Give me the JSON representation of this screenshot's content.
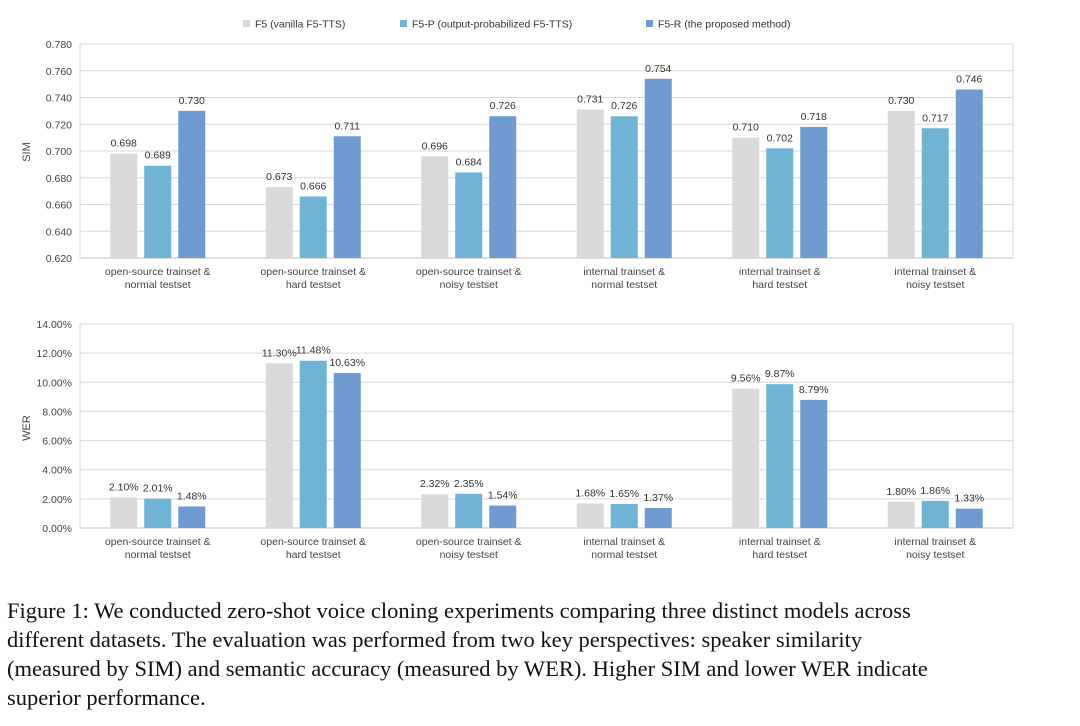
{
  "colors": {
    "F5": "#d9d9d9",
    "F5-P": "#6fb4d4",
    "F5-R": "#6f9bd1",
    "grid": "#d9d9d9",
    "axis": "#bfbfbf"
  },
  "legend": [
    {
      "key": "F5",
      "label": "F5 (vanilla F5-TTS)"
    },
    {
      "key": "F5-P",
      "label": "F5-P (output-probabilized F5-TTS)"
    },
    {
      "key": "F5-R",
      "label": "F5-R (the proposed method)"
    }
  ],
  "chart_data": [
    {
      "type": "bar",
      "title": "",
      "xlabel": "",
      "ylabel": "SIM",
      "ylim": [
        0.62,
        0.78
      ],
      "ytick_step": 0.02,
      "ytick_labels": [
        "0.620",
        "0.640",
        "0.660",
        "0.680",
        "0.700",
        "0.720",
        "0.740",
        "0.760",
        "0.780"
      ],
      "grid": true,
      "categories": [
        [
          "open-source trainset &",
          "normal testset"
        ],
        [
          "open-source trainset &",
          "hard testset"
        ],
        [
          "open-source trainset &",
          "noisy testset"
        ],
        [
          "internal trainset &",
          "normal testset"
        ],
        [
          "internal trainset &",
          "hard testset"
        ],
        [
          "internal trainset &",
          "noisy testset"
        ]
      ],
      "series": [
        {
          "name": "F5 (vanilla F5-TTS)",
          "key": "F5",
          "values": [
            0.698,
            0.673,
            0.696,
            0.731,
            0.71,
            0.73
          ],
          "labels": [
            "0.698",
            "0.673",
            "0.696",
            "0.731",
            "0.710",
            "0.730"
          ]
        },
        {
          "name": "F5-P (output-probabilized F5-TTS)",
          "key": "F5-P",
          "values": [
            0.689,
            0.666,
            0.684,
            0.726,
            0.702,
            0.717
          ],
          "labels": [
            "0.689",
            "0.666",
            "0.684",
            "0.726",
            "0.702",
            "0.717"
          ]
        },
        {
          "name": "F5-R (the proposed method)",
          "key": "F5-R",
          "values": [
            0.73,
            0.711,
            0.726,
            0.754,
            0.718,
            0.746
          ],
          "labels": [
            "0.730",
            "0.711",
            "0.726",
            "0.754",
            "0.718",
            "0.746"
          ]
        }
      ]
    },
    {
      "type": "bar",
      "title": "",
      "xlabel": "",
      "ylabel": "WER",
      "ylim": [
        0,
        14
      ],
      "ytick_step": 2,
      "ytick_labels": [
        "0.00%",
        "2.00%",
        "4.00%",
        "6.00%",
        "8.00%",
        "10.00%",
        "12.00%",
        "14.00%"
      ],
      "grid": true,
      "categories": [
        [
          "open-source trainset &",
          "normal testset"
        ],
        [
          "open-source trainset &",
          "hard testset"
        ],
        [
          "open-source trainset &",
          "noisy testset"
        ],
        [
          "internal trainset &",
          "normal testset"
        ],
        [
          "internal trainset &",
          "hard testset"
        ],
        [
          "internal trainset &",
          "noisy testset"
        ]
      ],
      "series": [
        {
          "name": "F5 (vanilla F5-TTS)",
          "key": "F5",
          "values": [
            2.1,
            11.3,
            2.32,
            1.68,
            9.56,
            1.8
          ],
          "labels": [
            "2.10%",
            "11.30%",
            "2.32%",
            "1.68%",
            "9.56%",
            "1.80%"
          ]
        },
        {
          "name": "F5-P (output-probabilized F5-TTS)",
          "key": "F5-P",
          "values": [
            2.01,
            11.48,
            2.35,
            1.65,
            9.87,
            1.86
          ],
          "labels": [
            "2.01%",
            "11.48%",
            "2.35%",
            "1.65%",
            "9.87%",
            "1.86%"
          ]
        },
        {
          "name": "F5-R (the proposed method)",
          "key": "F5-R",
          "values": [
            1.48,
            10.63,
            1.54,
            1.37,
            8.79,
            1.33
          ],
          "labels": [
            "1.48%",
            "10.63%",
            "1.54%",
            "1.37%",
            "8.79%",
            "1.33%"
          ]
        }
      ]
    }
  ],
  "caption": {
    "lines": [
      "Figure 1: We conducted zero-shot voice cloning experiments comparing three distinct models across",
      "different datasets.  The evaluation was performed from two key perspectives:  speaker similarity",
      "(measured by SIM) and semantic accuracy (measured by WER). Higher SIM and lower WER indicate",
      "superior performance."
    ]
  }
}
